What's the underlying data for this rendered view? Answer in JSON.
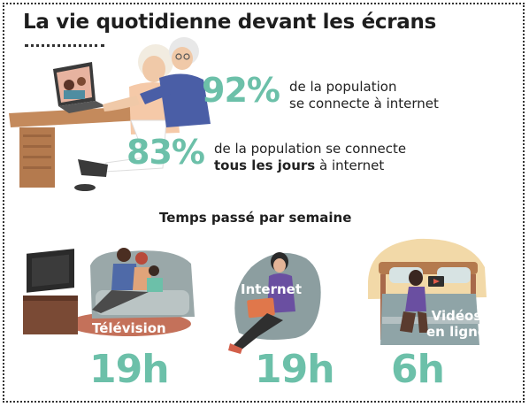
{
  "title": "La vie quotidienne devant les écrans",
  "stats": [
    {
      "value": "92%",
      "line1": "de la population",
      "line2": "se connecte à internet"
    },
    {
      "value": "83%",
      "line1": "de la population se connecte",
      "line2_bold": "tous les jours",
      "line2_rest": " à internet"
    }
  ],
  "section_title": "Temps passé par semaine",
  "categories": [
    {
      "label": "Télévision",
      "hours": "19h"
    },
    {
      "label": "Internet",
      "hours": "19h"
    },
    {
      "label_line1": "Vidéos",
      "label_line2": "en ligne",
      "hours": "6h"
    }
  ],
  "colors": {
    "accent": "#6cc0a9",
    "text": "#1e1e1e"
  },
  "icons": [
    "elderly-couple-laptop-illustration",
    "family-tv-illustration",
    "woman-laptop-beanbag-illustration",
    "girl-tablet-bed-illustration"
  ]
}
